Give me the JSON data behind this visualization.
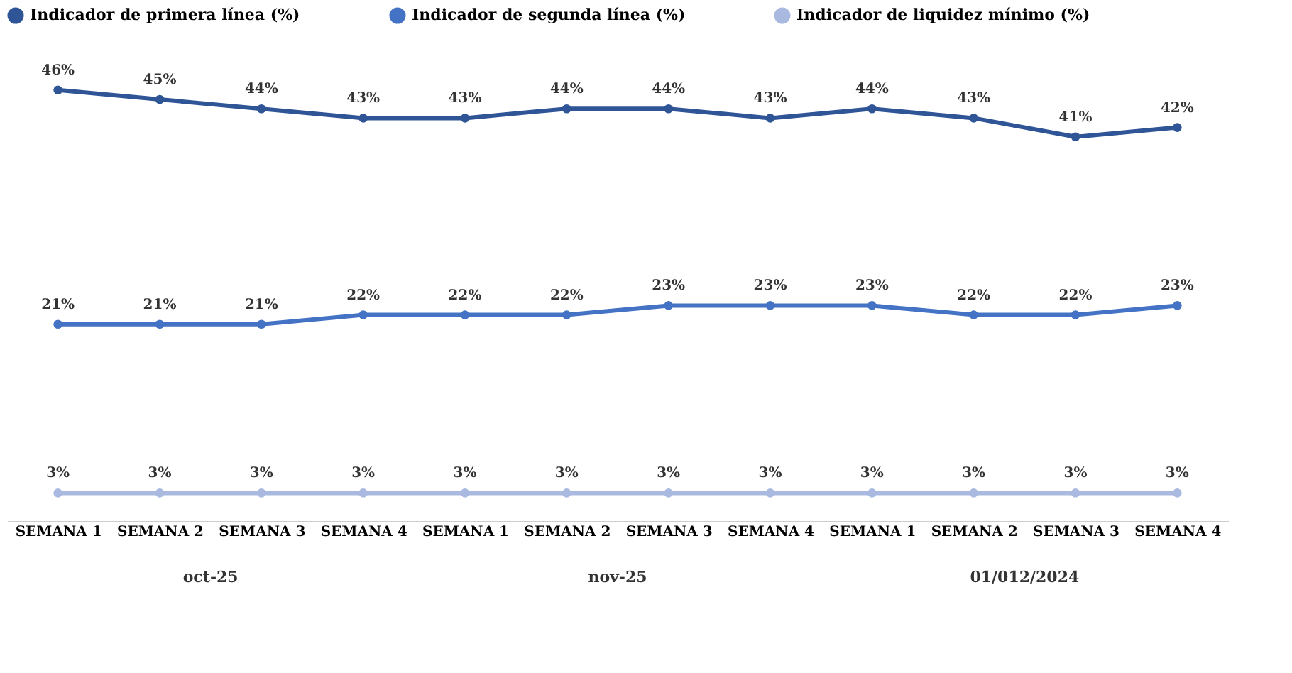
{
  "chart_data": {
    "type": "line",
    "categories": [
      "SEMANA 1",
      "SEMANA 2",
      "SEMANA 3",
      "SEMANA 4",
      "SEMANA 1",
      "SEMANA 2",
      "SEMANA 3",
      "SEMANA 4",
      "SEMANA 1",
      "SEMANA 2",
      "SEMANA 3",
      "SEMANA 4"
    ],
    "series": [
      {
        "name": "Indicador de primera línea (%)",
        "color": "#2f5597",
        "values": [
          46,
          45,
          44,
          43,
          43,
          44,
          44,
          43,
          44,
          43,
          41,
          42
        ],
        "value_labels": [
          "46%",
          "45%",
          "44%",
          "43%",
          "43%",
          "44%",
          "44%",
          "43%",
          "44%",
          "43%",
          "41%",
          "42%"
        ]
      },
      {
        "name": "Indicador de segunda línea (%)",
        "color": "#4472c4",
        "values": [
          21,
          21,
          21,
          22,
          22,
          22,
          23,
          23,
          23,
          22,
          22,
          23
        ],
        "value_labels": [
          "21%",
          "21%",
          "21%",
          "22%",
          "22%",
          "22%",
          "23%",
          "23%",
          "23%",
          "22%",
          "22%",
          "23%"
        ]
      },
      {
        "name": "Indicador de liquidez mínimo (%)",
        "color": "#a9b9e0",
        "values": [
          3,
          3,
          3,
          3,
          3,
          3,
          3,
          3,
          3,
          3,
          3,
          3
        ],
        "value_labels": [
          "3%",
          "3%",
          "3%",
          "3%",
          "3%",
          "3%",
          "3%",
          "3%",
          "3%",
          "3%",
          "3%",
          "3%"
        ]
      }
    ],
    "annotations": [
      "oct-25",
      "nov-25",
      "01/012/2024"
    ],
    "marker": "circle",
    "line_style": "solid",
    "legend": "top",
    "grid": false
  }
}
